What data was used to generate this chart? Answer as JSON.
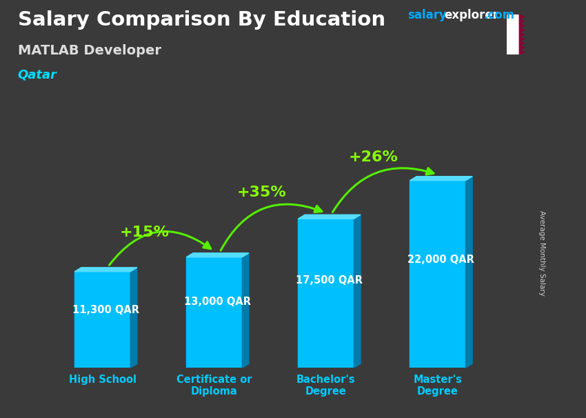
{
  "title": "Salary Comparison By Education",
  "subtitle": "MATLAB Developer",
  "country": "Qatar",
  "ylabel": "Average Monthly Salary",
  "categories": [
    "High School",
    "Certificate or\nDiploma",
    "Bachelor's\nDegree",
    "Master's\nDegree"
  ],
  "values": [
    11300,
    13000,
    17500,
    22000
  ],
  "value_labels": [
    "11,300 QAR",
    "13,000 QAR",
    "17,500 QAR",
    "22,000 QAR"
  ],
  "pct_labels": [
    "+15%",
    "+35%",
    "+26%"
  ],
  "bar_color": "#00BFFF",
  "bar_right_color": "#007BAA",
  "bar_top_color": "#55DDFF",
  "arrow_color": "#55EE00",
  "pct_color": "#88FF00",
  "title_color": "#FFFFFF",
  "subtitle_color": "#DDDDDD",
  "country_color": "#00DDFF",
  "ws_color": "#00AAFF",
  "we_color": "#FFFFFF",
  "value_color": "#FFFFFF",
  "xlabel_color": "#00CCFF",
  "ylabel_color": "#CCCCCC",
  "bg_color": "#3A3A3A",
  "ylim": [
    0,
    27000
  ],
  "figsize": [
    8.5,
    6.06
  ],
  "dpi": 100
}
